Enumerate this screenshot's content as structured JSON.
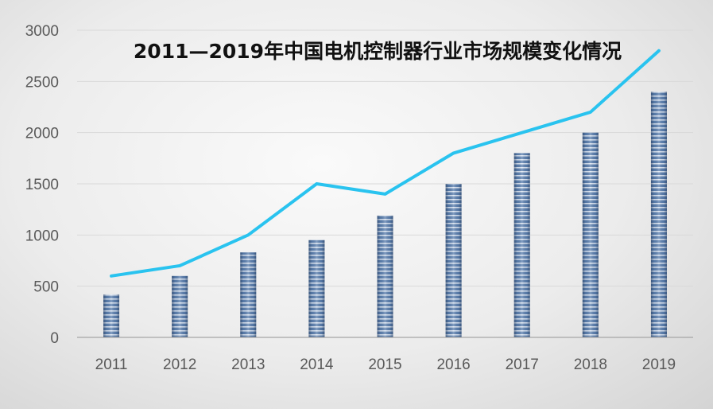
{
  "chart_data": {
    "type": "bar",
    "title": "2011—2019年中国电机控制器行业市场规模变化情况",
    "xlabel": "",
    "ylabel": "",
    "categories": [
      "2011",
      "2012",
      "2013",
      "2014",
      "2015",
      "2016",
      "2017",
      "2018",
      "2019"
    ],
    "series": [
      {
        "type": "bar",
        "values": [
          420,
          600,
          830,
          950,
          1190,
          1500,
          1800,
          2000,
          2400
        ]
      },
      {
        "type": "line",
        "values": [
          600,
          700,
          1000,
          1500,
          1400,
          1800,
          2000,
          2200,
          2800
        ]
      }
    ],
    "ylim": [
      0,
      3000
    ],
    "yticks": [
      "0",
      "500",
      "1000",
      "1500",
      "2000",
      "2500",
      "3000"
    ],
    "grid": true,
    "colors": {
      "bar": "#5b7fae",
      "bar_stripe": "#dfe8f4",
      "line": "#29c3ef",
      "grid": "#d9d9d9",
      "axis": "#a6a6a6",
      "tick_text": "#595959",
      "title": "#111111"
    }
  }
}
